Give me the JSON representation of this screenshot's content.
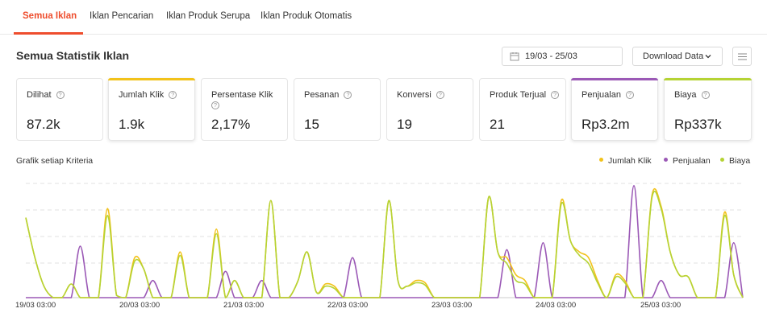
{
  "tabs": [
    {
      "label": "Semua Iklan",
      "active": true
    },
    {
      "label": "Iklan Pencarian",
      "active": false
    },
    {
      "label": "Iklan Produk Serupa",
      "active": false
    },
    {
      "label": "Iklan Produk Otomatis",
      "active": false
    }
  ],
  "title": "Semua Statistik Iklan",
  "date_range": "19/03 - 25/03",
  "download_label": "Download Data",
  "icons": {
    "calendar": "calendar-icon",
    "chevron": "chevron-down-icon",
    "menu": "menu-icon",
    "help": "help-circle-icon"
  },
  "help_glyph": "?",
  "metrics": [
    {
      "label": "Dilihat",
      "value": "87.2k",
      "color": ""
    },
    {
      "label": "Jumlah Klik",
      "value": "1.9k",
      "color": "#f2c21a"
    },
    {
      "label": "Persentase Klik",
      "value": "2,17%",
      "color": ""
    },
    {
      "label": "Pesanan",
      "value": "15",
      "color": ""
    },
    {
      "label": "Konversi",
      "value": "19",
      "color": ""
    },
    {
      "label": "Produk Terjual",
      "value": "21",
      "color": ""
    },
    {
      "label": "Penjualan",
      "value": "Rp3.2m",
      "color": "#9b59b6"
    },
    {
      "label": "Biaya",
      "value": "Rp337k",
      "color": "#b5d334"
    }
  ],
  "chart_title": "Grafik setiap Kriteria",
  "colors": {
    "accent": "#ee4d2d",
    "klik": "#f2c21a",
    "penjualan": "#9b59b6",
    "biaya": "#b5d334",
    "grid": "#e0e0e0"
  },
  "chart_data": {
    "type": "line",
    "x_ticks": [
      "19/03 03:00",
      "20/03 03:00",
      "21/03 03:00",
      "22/03 03:00",
      "23/03 03:00",
      "24/03 03:00",
      "25/03 03:00"
    ],
    "grid": true,
    "legend_position": "top-right",
    "series": [
      {
        "name": "Jumlah Klik",
        "color": "#f2c21a",
        "values": [
          0.7,
          0.35,
          0.1,
          0,
          0,
          0.12,
          0,
          0,
          0,
          0.78,
          0.02,
          0,
          0.35,
          0.25,
          0,
          0,
          0,
          0.4,
          0,
          0,
          0,
          0.6,
          0,
          0.15,
          0,
          0,
          0,
          0.85,
          0,
          0,
          0.15,
          0.4,
          0.05,
          0.12,
          0.1,
          0,
          0,
          0,
          0,
          0,
          0.85,
          0.15,
          0.1,
          0.15,
          0.13,
          0,
          0,
          0,
          0,
          0,
          0,
          0.88,
          0.4,
          0.35,
          0.2,
          0.15,
          0,
          0,
          0,
          0.85,
          0.5,
          0.4,
          0.35,
          0.15,
          0,
          0.2,
          0.15,
          0,
          0,
          0.9,
          0.8,
          0.4,
          0.2,
          0.18,
          0,
          0,
          0,
          0.75,
          0.2,
          0
        ]
      },
      {
        "name": "Penjualan",
        "color": "#9b59b6",
        "values": [
          0,
          0,
          0,
          0,
          0,
          0,
          0.45,
          0,
          0,
          0,
          0,
          0,
          0,
          0,
          0.15,
          0,
          0,
          0,
          0,
          0,
          0,
          0,
          0.23,
          0,
          0,
          0,
          0.15,
          0,
          0,
          0,
          0,
          0,
          0,
          0,
          0,
          0,
          0.35,
          0,
          0,
          0,
          0,
          0,
          0,
          0,
          0,
          0,
          0,
          0,
          0,
          0,
          0,
          0,
          0,
          0.42,
          0,
          0,
          0,
          0.48,
          0,
          0,
          0,
          0,
          0,
          0,
          0,
          0,
          0,
          0.98,
          0,
          0,
          0.15,
          0,
          0,
          0,
          0,
          0,
          0,
          0,
          0.48,
          0
        ]
      },
      {
        "name": "Biaya",
        "color": "#b5d334",
        "values": [
          0.7,
          0.35,
          0.1,
          0,
          0,
          0.12,
          0,
          0,
          0,
          0.72,
          0.02,
          0,
          0.32,
          0.25,
          0,
          0,
          0,
          0.37,
          0,
          0,
          0,
          0.56,
          0,
          0.15,
          0,
          0,
          0,
          0.85,
          0,
          0,
          0.15,
          0.4,
          0.05,
          0.1,
          0.08,
          0,
          0,
          0,
          0,
          0,
          0.85,
          0.15,
          0.1,
          0.13,
          0.11,
          0,
          0,
          0,
          0,
          0,
          0,
          0.88,
          0.4,
          0.3,
          0.15,
          0.12,
          0,
          0,
          0,
          0.82,
          0.5,
          0.37,
          0.3,
          0.13,
          0,
          0.18,
          0.13,
          0,
          0,
          0.88,
          0.78,
          0.4,
          0.2,
          0.18,
          0,
          0,
          0,
          0.72,
          0.2,
          0
        ]
      }
    ]
  }
}
